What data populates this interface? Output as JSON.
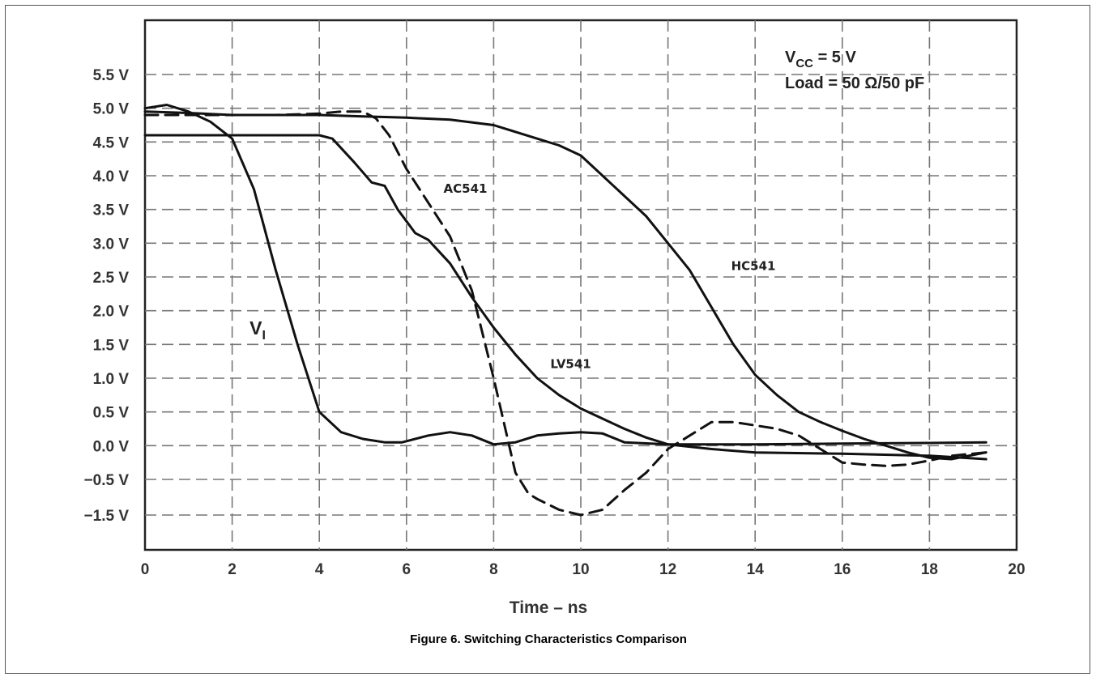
{
  "chart_data": {
    "type": "line",
    "xlabel": "Time – ns",
    "ylabel": "",
    "xlim": [
      0,
      20
    ],
    "x_ticks": [
      0,
      2,
      4,
      6,
      8,
      10,
      12,
      14,
      16,
      18,
      20
    ],
    "y_ticks": [
      -1.5,
      -0.5,
      0.0,
      0.5,
      1.0,
      1.5,
      2.0,
      2.5,
      3.0,
      3.5,
      4.0,
      4.5,
      5.0,
      5.5
    ],
    "y_tick_labels": [
      "−1.5 V",
      "−0.5 V",
      "0.0 V",
      "0.5 V",
      "1.0 V",
      "1.5 V",
      "2.0 V",
      "2.5 V",
      "3.0 V",
      "3.5 V",
      "4.0 V",
      "4.5 V",
      "5.0 V",
      "5.5 V"
    ],
    "grid": true,
    "conditions": {
      "vcc_main": "V",
      "vcc_sub": "CC",
      "vcc_value": " = 5 V",
      "load": "Load = 50 Ω/50 pF"
    },
    "series": [
      {
        "name": "VI",
        "label_main": "V",
        "label_sub": "I",
        "style": "solid",
        "x": [
          0,
          0.5,
          1.0,
          1.5,
          2.0,
          2.5,
          3.0,
          3.5,
          4.0,
          4.5,
          5.0,
          5.5,
          5.9,
          6.5,
          7.0,
          7.5,
          8.0,
          8.5,
          9.0,
          9.5,
          10.0,
          10.5,
          11.0,
          12.0,
          14.0,
          16.0,
          18.0,
          19.3
        ],
        "y": [
          5.0,
          5.05,
          4.95,
          4.8,
          4.55,
          3.8,
          2.6,
          1.5,
          0.5,
          0.2,
          0.1,
          0.05,
          0.05,
          0.15,
          0.2,
          0.15,
          0.02,
          0.05,
          0.15,
          0.18,
          0.2,
          0.18,
          0.05,
          0.02,
          0.02,
          0.03,
          0.04,
          0.05
        ]
      },
      {
        "name": "LV541",
        "style": "solid",
        "x": [
          0,
          1,
          2,
          3,
          4,
          4.3,
          4.8,
          5.2,
          5.5,
          5.8,
          6.2,
          6.5,
          7.0,
          7.5,
          8.0,
          8.5,
          9.0,
          9.5,
          10.0,
          10.5,
          11.0,
          11.5,
          12.0,
          13.0,
          14.0,
          16.0,
          18.0,
          19.3
        ],
        "y": [
          4.6,
          4.6,
          4.6,
          4.6,
          4.6,
          4.55,
          4.2,
          3.9,
          3.85,
          3.5,
          3.15,
          3.05,
          2.7,
          2.2,
          1.75,
          1.35,
          1.0,
          0.75,
          0.55,
          0.4,
          0.25,
          0.12,
          0.02,
          -0.05,
          -0.1,
          -0.12,
          -0.15,
          -0.2
        ]
      },
      {
        "name": "AC541",
        "style": "dashed",
        "x": [
          0,
          1,
          2,
          3,
          4,
          4.5,
          5.0,
          5.3,
          5.6,
          6.0,
          6.5,
          7.0,
          7.5,
          8.0,
          8.5,
          8.8,
          9.0,
          9.5,
          10.0,
          10.5,
          11.0,
          11.5,
          12.0,
          12.5,
          13.0,
          13.5,
          14.0,
          14.5,
          15.0,
          15.5,
          16.0,
          16.5,
          17.0,
          17.5,
          18.0,
          18.5,
          19.3
        ],
        "y": [
          4.9,
          4.9,
          4.9,
          4.9,
          4.92,
          4.95,
          4.95,
          4.85,
          4.6,
          4.1,
          3.6,
          3.1,
          2.3,
          1.0,
          -0.4,
          -0.9,
          -1.05,
          -1.35,
          -1.5,
          -1.35,
          -0.8,
          -0.4,
          -0.05,
          0.15,
          0.35,
          0.35,
          0.3,
          0.25,
          0.15,
          -0.05,
          -0.25,
          -0.28,
          -0.3,
          -0.28,
          -0.22,
          -0.15,
          -0.1
        ]
      },
      {
        "name": "HC541",
        "style": "solid",
        "x": [
          0,
          1,
          2,
          3,
          4,
          5,
          6,
          7,
          8,
          9,
          9.5,
          10.0,
          10.5,
          11.0,
          11.5,
          12.0,
          12.5,
          13.0,
          13.5,
          14.0,
          14.5,
          15.0,
          15.5,
          16.0,
          16.5,
          17.0,
          17.5,
          18.0,
          18.5,
          19.3
        ],
        "y": [
          4.95,
          4.93,
          4.9,
          4.9,
          4.9,
          4.88,
          4.86,
          4.83,
          4.75,
          4.55,
          4.45,
          4.3,
          4.0,
          3.7,
          3.4,
          3.0,
          2.6,
          2.05,
          1.5,
          1.05,
          0.75,
          0.5,
          0.35,
          0.22,
          0.1,
          0.0,
          -0.1,
          -0.18,
          -0.2,
          -0.1
        ]
      }
    ]
  },
  "figure": {
    "caption": "Figure 6. Switching Characteristics Comparison"
  }
}
